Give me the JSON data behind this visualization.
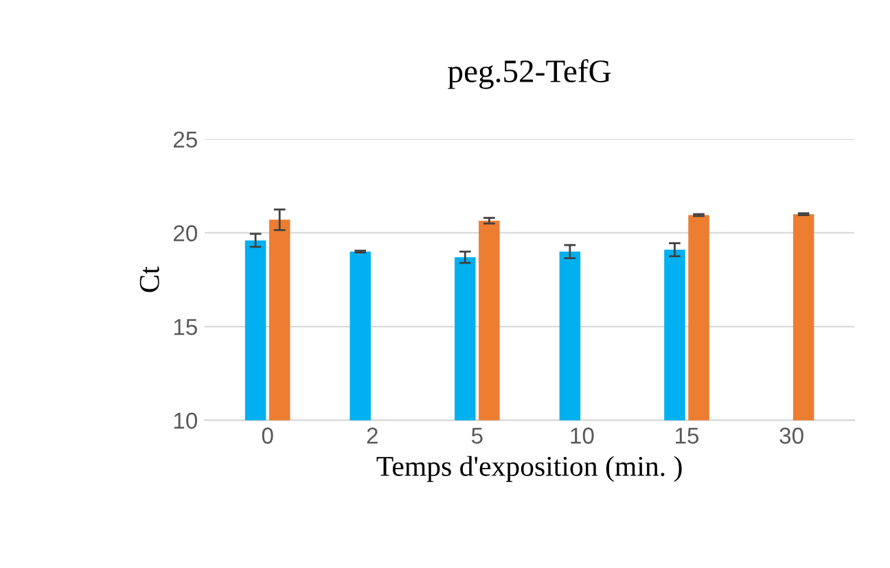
{
  "chart_data": {
    "type": "bar",
    "title": "peg.52-TefG",
    "xlabel": "Temps d'exposition (min. )",
    "ylabel": "Ct",
    "categories": [
      "0",
      "2",
      "5",
      "10",
      "15",
      "30"
    ],
    "series": [
      {
        "color": "#00b0f0",
        "values": [
          19.6,
          19.0,
          18.7,
          19.0,
          19.1,
          null
        ],
        "errors": [
          0.35,
          0.05,
          0.3,
          0.35,
          0.35,
          null
        ]
      },
      {
        "color": "#ed7d31",
        "values": [
          20.7,
          null,
          20.65,
          null,
          20.95,
          21.0
        ],
        "errors": [
          0.55,
          null,
          0.15,
          null,
          0.05,
          0.05
        ]
      }
    ],
    "ylim": [
      10,
      25
    ],
    "yticks": [
      10,
      15,
      20,
      25
    ],
    "grid": "y",
    "legend": false
  }
}
